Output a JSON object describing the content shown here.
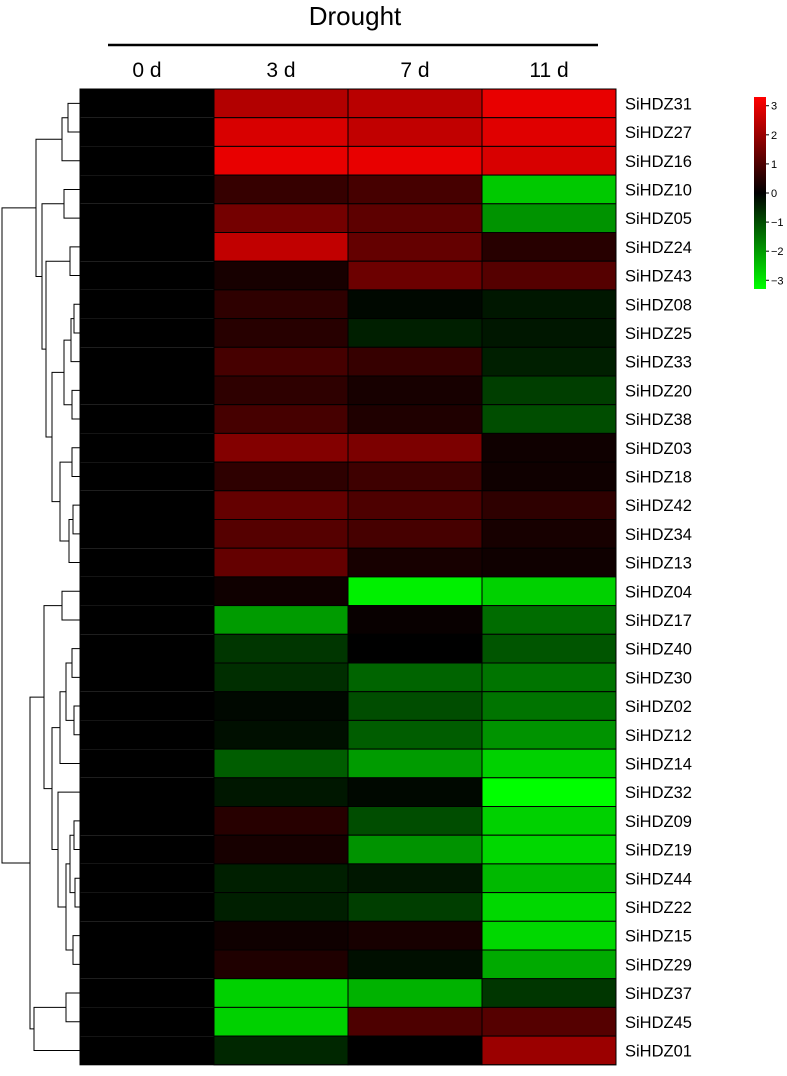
{
  "chart_data": {
    "type": "heatmap",
    "title": "Drought",
    "columns": [
      "0 d",
      "3 d",
      "7 d",
      "11 d"
    ],
    "rows": [
      "SiHDZ31",
      "SiHDZ27",
      "SiHDZ16",
      "SiHDZ10",
      "SiHDZ05",
      "SiHDZ24",
      "SiHDZ43",
      "SiHDZ08",
      "SiHDZ25",
      "SiHDZ33",
      "SiHDZ20",
      "SiHDZ38",
      "SiHDZ03",
      "SiHDZ18",
      "SiHDZ42",
      "SiHDZ34",
      "SiHDZ13",
      "SiHDZ04",
      "SiHDZ17",
      "SiHDZ40",
      "SiHDZ30",
      "SiHDZ02",
      "SiHDZ12",
      "SiHDZ14",
      "SiHDZ32",
      "SiHDZ09",
      "SiHDZ19",
      "SiHDZ44",
      "SiHDZ22",
      "SiHDZ15",
      "SiHDZ29",
      "SiHDZ37",
      "SiHDZ45",
      "SiHDZ01"
    ],
    "values": [
      [
        0,
        2.3,
        2.4,
        3.0
      ],
      [
        0,
        2.8,
        2.5,
        2.9
      ],
      [
        0,
        3.0,
        3.0,
        2.8
      ],
      [
        0,
        0.7,
        0.9,
        -2.6
      ],
      [
        0,
        1.5,
        1.2,
        -1.9
      ],
      [
        0,
        2.5,
        1.3,
        0.5
      ],
      [
        0,
        0.3,
        1.4,
        1.1
      ],
      [
        0,
        0.6,
        -0.1,
        -0.3
      ],
      [
        0,
        0.5,
        -0.4,
        -0.3
      ],
      [
        0,
        0.9,
        0.7,
        -0.4
      ],
      [
        0,
        0.6,
        0.3,
        -0.8
      ],
      [
        0,
        0.9,
        0.4,
        -1.0
      ],
      [
        0,
        1.7,
        1.6,
        0.2
      ],
      [
        0,
        0.6,
        0.8,
        0.2
      ],
      [
        0,
        1.3,
        1.0,
        0.6
      ],
      [
        0,
        1.1,
        0.9,
        0.3
      ],
      [
        0,
        1.3,
        0.3,
        0.2
      ],
      [
        0,
        0.2,
        -3.1,
        -2.7
      ],
      [
        0,
        -2.0,
        0.1,
        -1.4
      ],
      [
        0,
        -0.7,
        0.0,
        -1.1
      ],
      [
        0,
        -0.6,
        -1.3,
        -1.5
      ],
      [
        0,
        -0.1,
        -1.0,
        -1.5
      ],
      [
        0,
        -0.2,
        -1.2,
        -1.9
      ],
      [
        0,
        -1.2,
        -2.0,
        -2.7
      ],
      [
        0,
        -0.3,
        -0.1,
        -3.3
      ],
      [
        0,
        0.5,
        -1.0,
        -2.7
      ],
      [
        0,
        0.3,
        -1.9,
        -2.8
      ],
      [
        0,
        -0.4,
        -0.3,
        -2.4
      ],
      [
        0,
        -0.4,
        -0.8,
        -2.8
      ],
      [
        0,
        0.2,
        0.3,
        -2.8
      ],
      [
        0,
        0.4,
        -0.2,
        -2.2
      ],
      [
        0,
        -2.7,
        -2.3,
        -0.7
      ],
      [
        0,
        -2.7,
        1.0,
        1.1
      ],
      [
        0,
        -0.5,
        0.0,
        2.0
      ]
    ],
    "legend": {
      "placement": "top-right",
      "ticks": [
        3,
        2,
        1,
        0,
        -1,
        -2,
        -3
      ],
      "tick_labels": [
        "3",
        "2",
        "1",
        "0",
        "−1",
        "−2",
        "−3"
      ],
      "vmin": -3.3,
      "vmax": 3.3,
      "colors": {
        "high": "#ff0000",
        "mid": "#000000",
        "low": "#00ff00"
      }
    },
    "dendrogram": "row clustering tree on left"
  }
}
